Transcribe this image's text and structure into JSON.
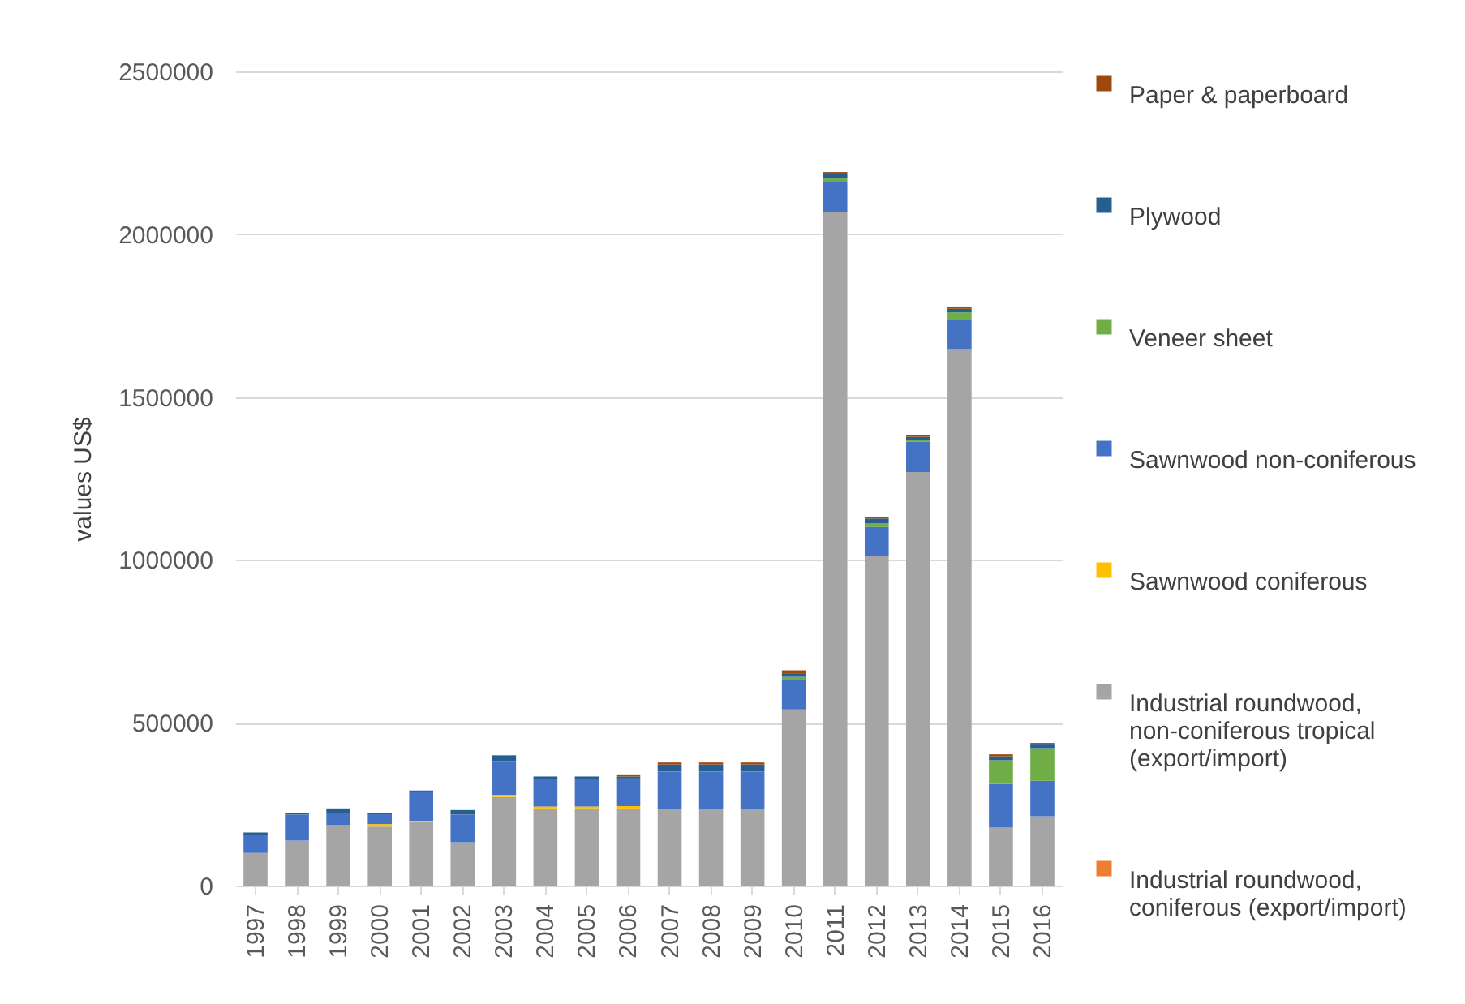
{
  "chart_data": {
    "type": "bar",
    "stacked": true,
    "ylabel": "values US$",
    "categories": [
      "1997",
      "1998",
      "1999",
      "2000",
      "2001",
      "2002",
      "2003",
      "2004",
      "2005",
      "2006",
      "2007",
      "2008",
      "2009",
      "2010",
      "2011",
      "2012",
      "2013",
      "2014",
      "2015",
      "2016"
    ],
    "ylim": [
      0,
      2500000
    ],
    "yticks": [
      0,
      500000,
      1000000,
      1500000,
      2000000,
      2500000
    ],
    "grid": "y",
    "legend": "right",
    "series": [
      {
        "name": "Industrial roundwood, coniferous (export/import)",
        "color": "#ed7d31",
        "values": [
          0,
          0,
          0,
          0,
          0,
          0,
          0,
          0,
          0,
          0,
          0,
          0,
          0,
          0,
          0,
          0,
          0,
          0,
          0,
          0
        ]
      },
      {
        "name": "Industrial roundwood, non-coniferous tropical (export/import)",
        "color": "#a5a5a5",
        "values": [
          100000,
          138000,
          186000,
          181000,
          194000,
          133000,
          272000,
          237000,
          237000,
          237000,
          236000,
          236000,
          236000,
          541000,
          2068000,
          1011000,
          1270000,
          1647000,
          178000,
          213000
        ]
      },
      {
        "name": "Sawnwood coniferous",
        "color": "#ffc000",
        "values": [
          0,
          0,
          0,
          8000,
          5000,
          0,
          7000,
          6000,
          6000,
          7000,
          0,
          0,
          0,
          0,
          0,
          0,
          0,
          0,
          0,
          0
        ]
      },
      {
        "name": "Sawnwood non-coniferous",
        "color": "#4472c4",
        "values": [
          57000,
          80000,
          36000,
          30000,
          90000,
          85000,
          104000,
          85000,
          85000,
          85000,
          114000,
          114000,
          114000,
          91000,
          92000,
          90000,
          93000,
          90000,
          134000,
          109000
        ]
      },
      {
        "name": "Veneer sheet",
        "color": "#70ad47",
        "values": [
          0,
          0,
          0,
          0,
          0,
          0,
          0,
          0,
          0,
          0,
          0,
          0,
          0,
          9000,
          11000,
          11000,
          6000,
          23000,
          73000,
          100000
        ]
      },
      {
        "name": "Plywood",
        "color": "#255e91",
        "values": [
          6000,
          5000,
          15000,
          3000,
          3000,
          14000,
          17000,
          7000,
          7000,
          6000,
          22000,
          22000,
          22000,
          11000,
          14000,
          15000,
          9000,
          11000,
          12000,
          11000
        ]
      },
      {
        "name": "Paper & paperboard",
        "color": "#9e480e",
        "values": [
          0,
          0,
          0,
          0,
          0,
          0,
          0,
          0,
          0,
          4000,
          6000,
          6000,
          6000,
          9000,
          6000,
          5000,
          6000,
          7000,
          6000,
          5000
        ]
      }
    ]
  }
}
